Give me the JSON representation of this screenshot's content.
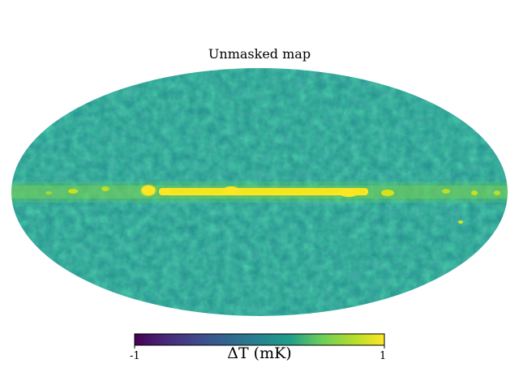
{
  "title": "Unmasked map",
  "projection": "mollweide",
  "colormap": "viridis",
  "colorbar": {
    "label": "ΔT (mK)",
    "min_label": "-1",
    "max_label": "1",
    "range": [
      -1,
      1
    ]
  },
  "colors": {
    "viridis_low": "#440154",
    "viridis_mid": "#21918c",
    "viridis_high": "#fde725",
    "background": "#ffffff"
  },
  "features": [
    "galactic-plane-emission"
  ]
}
